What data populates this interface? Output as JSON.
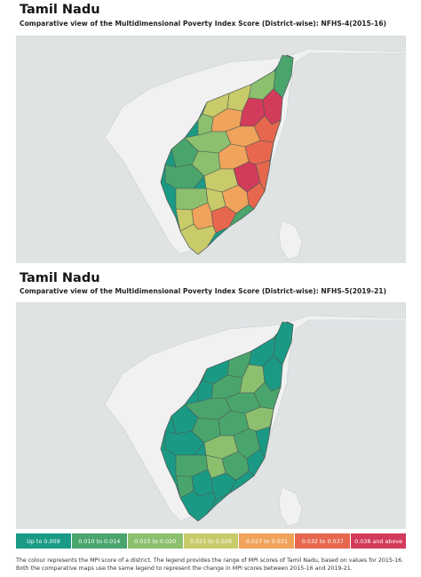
{
  "panels": [
    {
      "title": "Tamil Nadu",
      "subtitle": "Comparative view of the Multidimensional Poverty Index Score (District-wise): NFHS-4(2015-16)"
    },
    {
      "title": "Tamil Nadu",
      "subtitle": "Comparative view of the Multidimensional Poverty Index Score (District-wise): NFHS-5(2019-21)"
    }
  ],
  "legend": [
    {
      "label": "Up to 0.009",
      "color": "#1a9a84"
    },
    {
      "label": "0.010 to 0.014",
      "color": "#4aa56d"
    },
    {
      "label": "0.015 to 0.020",
      "color": "#8cbf6e"
    },
    {
      "label": "0.021 to 0.026",
      "color": "#c9cb6a"
    },
    {
      "label": "0.027 to 0.031",
      "color": "#f0a35a"
    },
    {
      "label": "0.032 to 0.037",
      "color": "#e7674e"
    },
    {
      "label": "0.038 and above",
      "color": "#d33b5a"
    }
  ],
  "caption": {
    "line1": "The colour represents the MPI score of a district. The legend provides the range of MPI scores of Tamil Nadu, based on values for 2015-16.",
    "line2": "Both the comparative maps use the same legend to represent the change in MPI scores between 2015-16 and 2019-21."
  },
  "colors": {
    "map_background": "#dfe3e4",
    "land_outside": "#f1f1f1",
    "district_border": "#4d5b55"
  }
}
